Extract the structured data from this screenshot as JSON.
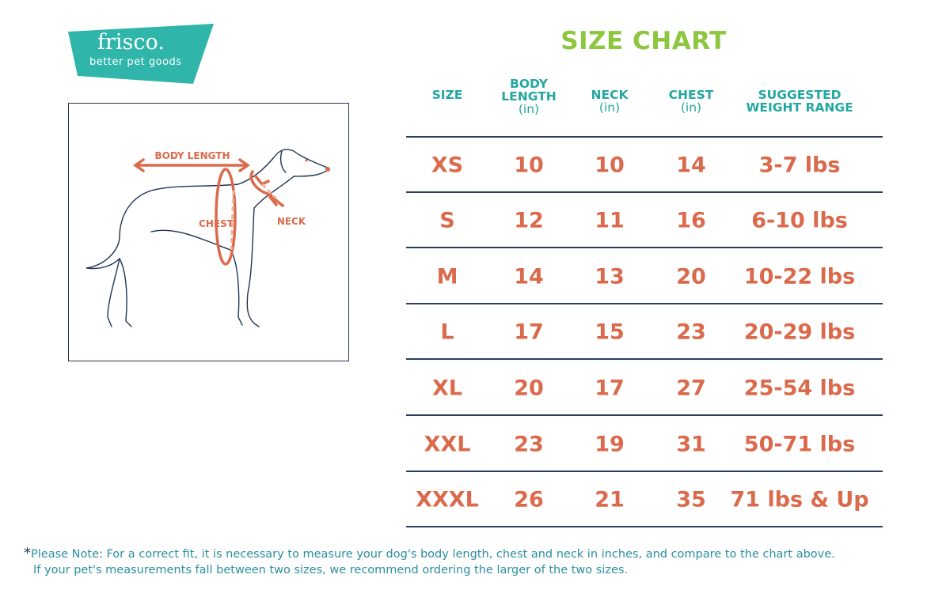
{
  "logo": {
    "word": "frisco.",
    "tagline": "better pet goods",
    "color": "#2fb5a9"
  },
  "diagram": {
    "labels": {
      "body_length": "BODY LENGTH",
      "chest": "CHEST",
      "neck": "NECK"
    }
  },
  "title": "SIZE CHART",
  "chart_data": {
    "type": "table",
    "title": "SIZE CHART",
    "columns": [
      {
        "label": "SIZE",
        "unit": ""
      },
      {
        "label": "BODY LENGTH",
        "unit": "(in)"
      },
      {
        "label": "NECK",
        "unit": "(in)"
      },
      {
        "label": "CHEST",
        "unit": "(in)"
      },
      {
        "label": "SUGGESTED WEIGHT RANGE",
        "unit": ""
      }
    ],
    "rows": [
      [
        "XS",
        "10",
        "10",
        "14",
        "3-7 lbs"
      ],
      [
        "S",
        "12",
        "11",
        "16",
        "6-10 lbs"
      ],
      [
        "M",
        "14",
        "13",
        "20",
        "10-22 lbs"
      ],
      [
        "L",
        "17",
        "15",
        "23",
        "20-29 lbs"
      ],
      [
        "XL",
        "20",
        "17",
        "27",
        "25-54 lbs"
      ],
      [
        "XXL",
        "23",
        "19",
        "31",
        "50-71 lbs"
      ],
      [
        "XXXL",
        "26",
        "21",
        "35",
        "71 lbs & Up"
      ]
    ]
  },
  "note": {
    "star": "*",
    "line1": "Please Note: For a correct fit, it is necessary to measure your dog's body length, chest and neck in inches, and compare to the chart above.",
    "line2": "If your pet's measurements fall between two sizes, we recommend ordering the larger of the two sizes."
  },
  "colors": {
    "title": "#8dc63f",
    "header": "#23a7a0",
    "values": "#db6a4c",
    "rules": "#2b3f5c"
  }
}
